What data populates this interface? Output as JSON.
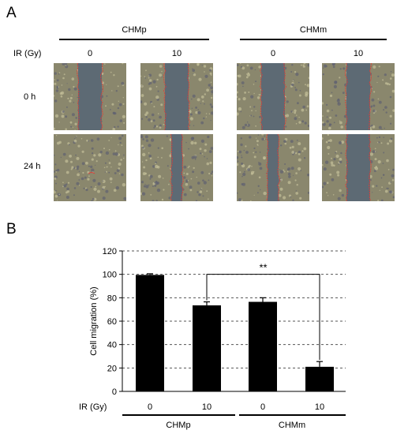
{
  "figure": {
    "panel_a_label": "A",
    "panel_b_label": "B",
    "ir_label": "IR (Gy)",
    "groups": [
      "CHMp",
      "CHMm"
    ],
    "doses": [
      "0",
      "10",
      "0",
      "10"
    ],
    "timepoints": [
      "0 h",
      "24 h"
    ]
  },
  "micrographs": [
    {
      "time": "0 h",
      "group": "CHMp",
      "dose": "0",
      "gap": "open"
    },
    {
      "time": "0 h",
      "group": "CHMp",
      "dose": "10",
      "gap": "open"
    },
    {
      "time": "0 h",
      "group": "CHMm",
      "dose": "0",
      "gap": "open"
    },
    {
      "time": "0 h",
      "group": "CHMm",
      "dose": "10",
      "gap": "open"
    },
    {
      "time": "24 h",
      "group": "CHMp",
      "dose": "0",
      "gap": "closed"
    },
    {
      "time": "24 h",
      "group": "CHMp",
      "dose": "10",
      "gap": "narrow"
    },
    {
      "time": "24 h",
      "group": "CHMm",
      "dose": "0",
      "gap": "narrow"
    },
    {
      "time": "24 h",
      "group": "CHMm",
      "dose": "10",
      "gap": "open"
    }
  ],
  "colors": {
    "cell_background": "#8a876d",
    "gap": "#5d6a74",
    "outline": "#d8403a",
    "bar": "#000000"
  },
  "chart_data": {
    "type": "bar",
    "ylabel": "Cell migration (%)",
    "xlabel": "IR (Gy)",
    "categories": [
      "0",
      "10",
      "0",
      "10"
    ],
    "groups": [
      "CHMp",
      "CHMm"
    ],
    "values": [
      99.5,
      73.5,
      76.5,
      21
    ],
    "errors": [
      1,
      3,
      3.5,
      4.5
    ],
    "ylim": [
      0,
      120
    ],
    "yticks": [
      0,
      20,
      40,
      60,
      80,
      100,
      120
    ],
    "grid": true,
    "annotation": "**"
  }
}
